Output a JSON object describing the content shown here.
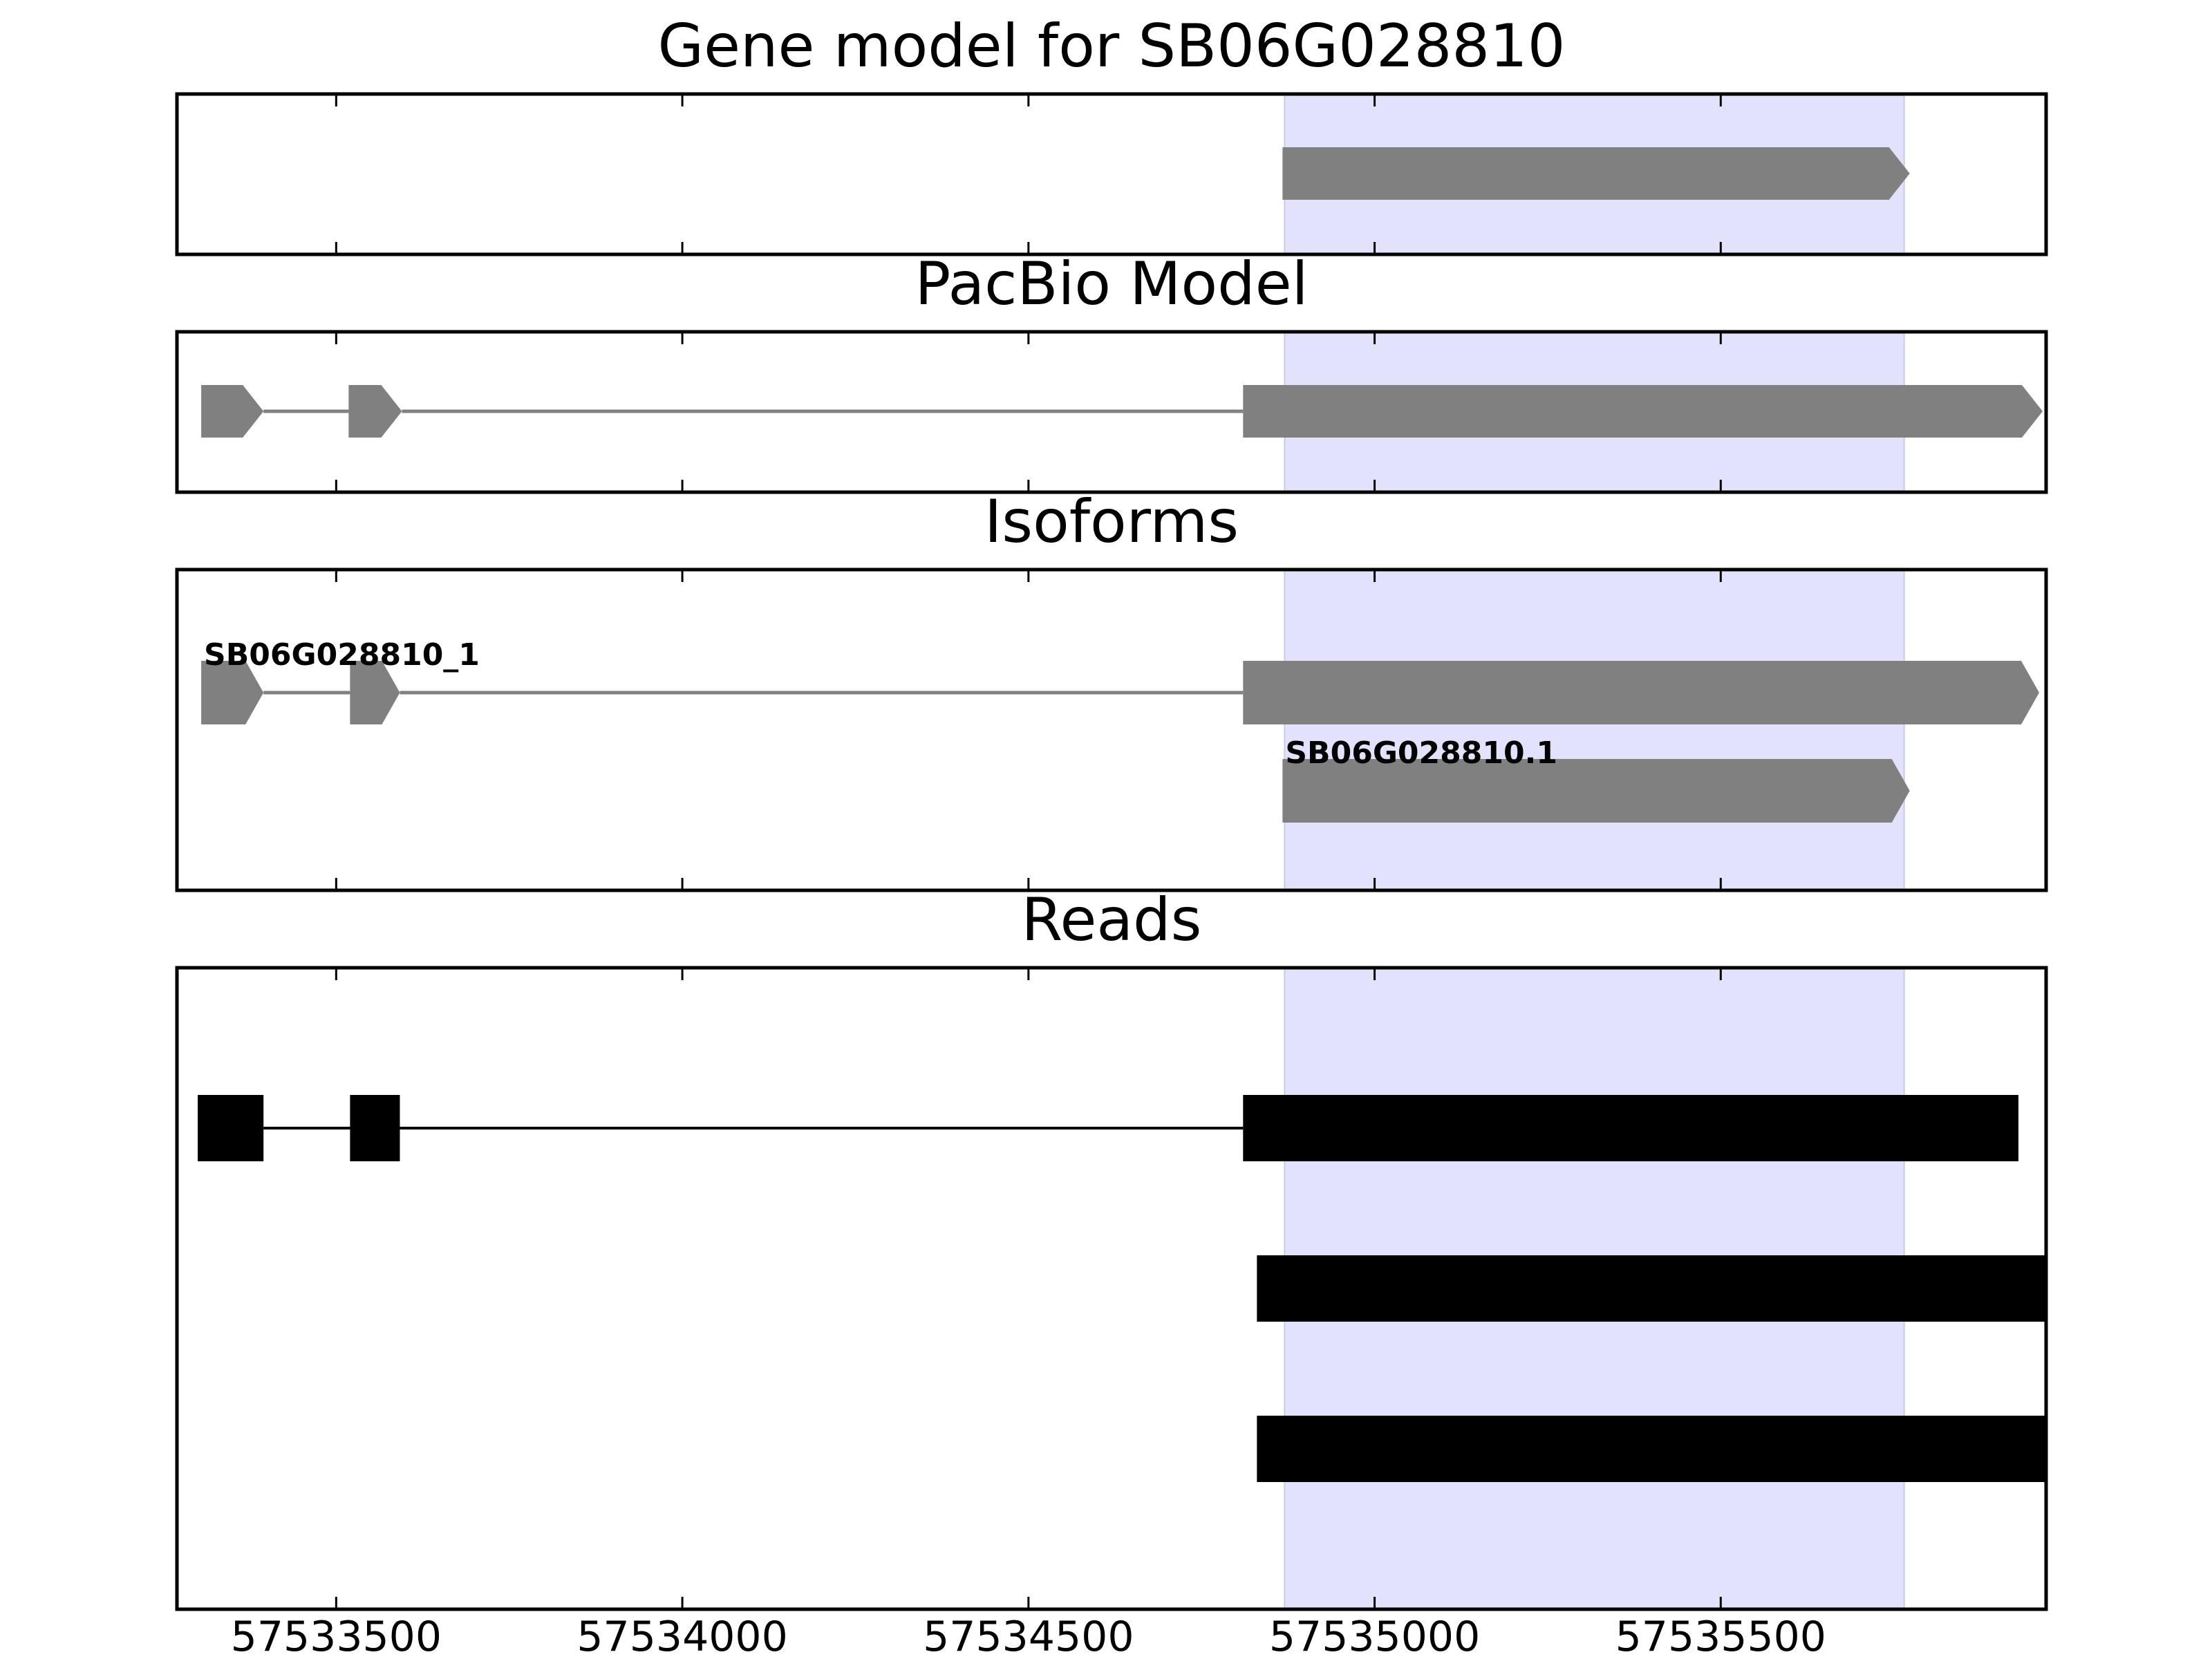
{
  "chart_data": {
    "type": "gene-track",
    "x_axis": {
      "range": [
        57533270,
        57535970
      ],
      "ticks": [
        57533500,
        57534000,
        57534500,
        57535000,
        57535500
      ],
      "tick_labels": [
        "57533500",
        "57534000",
        "57534500",
        "57535000",
        "57535500"
      ]
    },
    "highlight": {
      "start": 57534870,
      "end": 57535765,
      "color": "#e2e2fd"
    },
    "feature_color": "#808080",
    "read_color": "#000000",
    "panels": [
      {
        "id": "gene-model",
        "title": "Gene model for SB06G028810",
        "tracks": [
          {
            "label": "",
            "exons": [
              [
                57534867,
                57535773
              ]
            ],
            "strand": "+"
          }
        ]
      },
      {
        "id": "pacbio-model",
        "title": "PacBio Model",
        "tracks": [
          {
            "label": "",
            "exons": [
              [
                57533305,
                57533395
              ],
              [
                57533518,
                57533595
              ],
              [
                57534810,
                57535965
              ]
            ],
            "strand": "+"
          }
        ]
      },
      {
        "id": "isoforms",
        "title": "Isoforms",
        "tracks": [
          {
            "label": "SB06G028810_1",
            "exons": [
              [
                57533305,
                57533395
              ],
              [
                57533520,
                57533592
              ],
              [
                57534810,
                57535960
              ]
            ],
            "strand": "+"
          },
          {
            "label": "SB06G028810.1",
            "exons": [
              [
                57534867,
                57535773
              ]
            ],
            "strand": "+"
          }
        ]
      },
      {
        "id": "reads",
        "title": "Reads",
        "tracks": [
          {
            "label": "",
            "exons": [
              [
                57533300,
                57533395
              ],
              [
                57533520,
                57533592
              ],
              [
                57534810,
                57535930
              ]
            ]
          },
          {
            "label": "",
            "exons": [
              [
                57534830,
                57535970
              ]
            ]
          },
          {
            "label": "",
            "exons": [
              [
                57534830,
                57535970
              ]
            ]
          }
        ]
      }
    ]
  }
}
